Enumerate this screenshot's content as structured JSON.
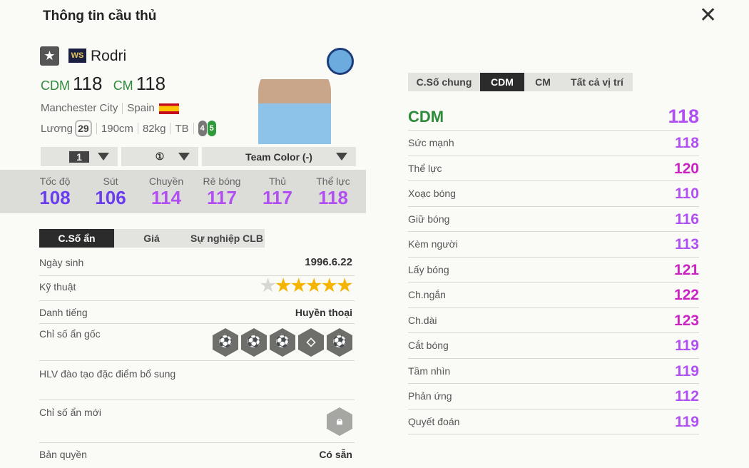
{
  "title": "Thông tin cầu thủ",
  "player": {
    "name": "Rodri",
    "season_badge": "WS",
    "positions": [
      {
        "pos": "CDM",
        "ovr": "118"
      },
      {
        "pos": "CM",
        "ovr": "118"
      }
    ],
    "club": "Manchester City",
    "nation": "Spain",
    "salary_label": "Lương",
    "salary": "29",
    "height": "190cm",
    "weight": "82kg",
    "body": "TB",
    "left_foot": "4",
    "right_foot": "5"
  },
  "selectors": {
    "level": "1",
    "upgrade": "①",
    "team_color": "Team Color (-)"
  },
  "main_stats": [
    {
      "label": "Tốc độ",
      "value": "108",
      "color": "#6a3cf0"
    },
    {
      "label": "Sút",
      "value": "106",
      "color": "#6a3cf0"
    },
    {
      "label": "Chuyền",
      "value": "114",
      "color": "#b14ff2"
    },
    {
      "label": "Rê bóng",
      "value": "117",
      "color": "#b14ff2"
    },
    {
      "label": "Thủ",
      "value": "117",
      "color": "#b14ff2"
    },
    {
      "label": "Thể lực",
      "value": "118",
      "color": "#b14ff2"
    }
  ],
  "left_tabs": [
    "C.Số ẩn",
    "Giá",
    "Sự nghiệp CLB"
  ],
  "hidden": {
    "birth_label": "Ngày sinh",
    "birth": "1996.6.22",
    "skill_label": "Kỹ thuật",
    "skill_stars": 5,
    "skill_max": 6,
    "fame_label": "Danh tiếng",
    "fame": "Huyền thoại",
    "traits_label": "Chỉ số ẩn gốc",
    "traits_icons": [
      "power-header-icon",
      "outside-curl-icon",
      "long-shot-icon",
      "diamond-icon",
      "long-pass-icon"
    ],
    "coach_label": "HLV đào tạo đặc điểm bổ sung",
    "new_label": "Chỉ số ẩn mới",
    "license_label": "Bản quyền",
    "license": "Có sẵn"
  },
  "right_tabs": [
    "C.Số chung",
    "CDM",
    "CM",
    "Tất cả vị trí"
  ],
  "position_header": {
    "pos": "CDM",
    "value": "118"
  },
  "attributes": [
    {
      "label": "Sức mạnh",
      "value": "118"
    },
    {
      "label": "Thể lực",
      "value": "120"
    },
    {
      "label": "Xoạc bóng",
      "value": "110"
    },
    {
      "label": "Giữ bóng",
      "value": "116"
    },
    {
      "label": "Kèm người",
      "value": "113"
    },
    {
      "label": "Lấy bóng",
      "value": "121"
    },
    {
      "label": "Ch.ngắn",
      "value": "122"
    },
    {
      "label": "Ch.dài",
      "value": "123"
    },
    {
      "label": "Cắt bóng",
      "value": "119"
    },
    {
      "label": "Tầm nhìn",
      "value": "119"
    },
    {
      "label": "Phản ứng",
      "value": "112"
    },
    {
      "label": "Quyết đoán",
      "value": "119"
    }
  ],
  "colors": {
    "accent_green": "#2e8b3a",
    "stat_purple": "#b14ff2",
    "stat_magenta": "#cc22c4",
    "stat_violet": "#6a3cf0"
  }
}
